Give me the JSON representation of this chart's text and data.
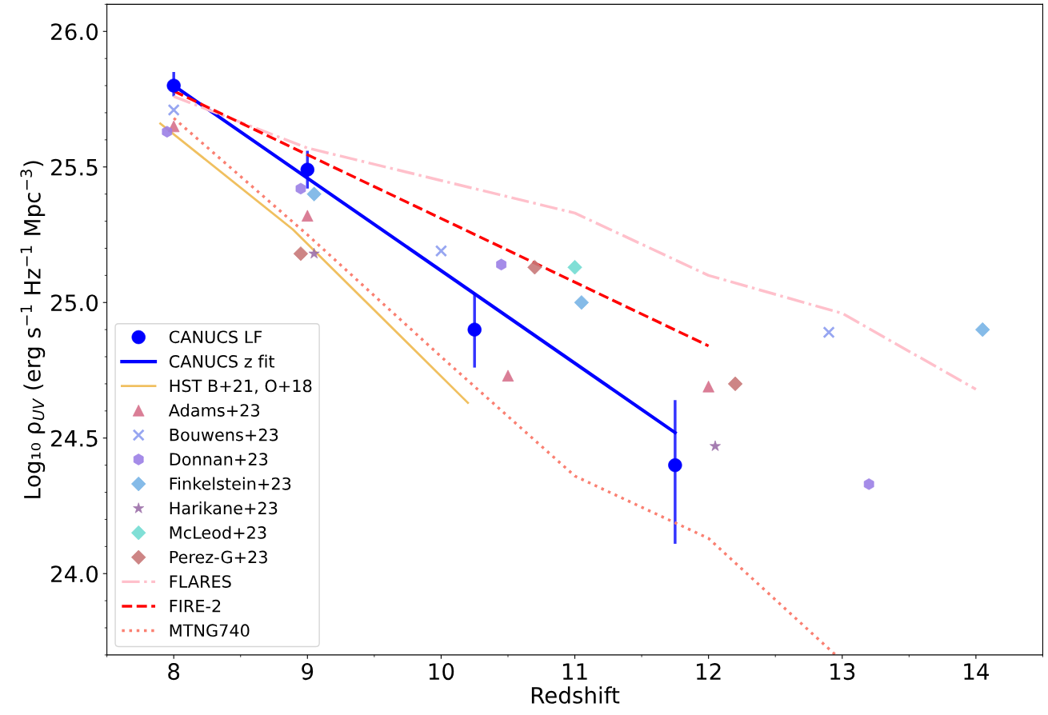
{
  "chart_data": {
    "type": "scatter",
    "xlabel": "Redshift",
    "ylabel": "Log₁₀ ρ$_{UV}$ (erg s$^{−1}$ Hz$^{−1}$ Mpc$^{−3}$)",
    "xlim": [
      7.5,
      14.5
    ],
    "xticks": [
      8,
      9,
      10,
      11,
      12,
      13,
      14
    ],
    "ylim": [
      23.7,
      26.1
    ],
    "yticks": [
      {
        "value": 24.0,
        "label": "24.0"
      },
      {
        "value": 24.5,
        "label": "24.5"
      },
      {
        "value": 25.0,
        "label": "25.0"
      },
      {
        "value": 25.5,
        "label": "25.5"
      },
      {
        "value": 26.0,
        "label": "26.0"
      }
    ],
    "grid": false,
    "legend": "bottom left",
    "series": [
      {
        "name": "CANUCS LF",
        "marker": "circle",
        "color": "#0000ff",
        "x": [
          8,
          9,
          10.25,
          11.75
        ],
        "values": [
          25.8,
          25.49,
          24.9,
          24.4
        ],
        "errors": [
          [
            25.76,
            25.85
          ],
          [
            25.42,
            25.56
          ],
          [
            24.76,
            25.03
          ],
          [
            24.11,
            24.64
          ]
        ]
      },
      {
        "name": "CANUCS z fit",
        "type": "line",
        "line_style": "solid",
        "color": "#0000ff",
        "x": [
          8,
          11.75
        ],
        "values": [
          25.8,
          24.52
        ]
      },
      {
        "name": "HST B+21, O+18",
        "type": "line",
        "line_style": "solid",
        "color": "#f0c060",
        "x": [
          7.9,
          8.89,
          10.2
        ],
        "values": [
          25.66,
          25.27,
          24.63
        ]
      },
      {
        "name": "Adams+23",
        "marker": "triangle",
        "color": "#d6708b",
        "x": [
          8,
          9,
          10.5,
          12
        ],
        "values": [
          25.65,
          25.32,
          24.73,
          24.69
        ]
      },
      {
        "name": "Bouwens+23",
        "marker": "cross",
        "color": "#8c9cf0",
        "x": [
          8,
          10,
          12.9
        ],
        "values": [
          25.71,
          25.19,
          24.89
        ]
      },
      {
        "name": "Donnan+23",
        "color": "#9b7fe6",
        "x": [
          7.95,
          8.95,
          10.45,
          13.2
        ],
        "values": [
          25.63,
          25.42,
          25.14,
          24.33
        ]
      },
      {
        "name": "Finkelstein+23",
        "marker": "diamond",
        "color": "#78b4e6",
        "x": [
          9.05,
          11.05,
          14.05
        ],
        "values": [
          25.4,
          25.0,
          24.9
        ]
      },
      {
        "name": "Harikane+23",
        "marker": "star",
        "color": "#9b6fa8",
        "x": [
          9.05,
          12.05
        ],
        "values": [
          25.18,
          24.47
        ]
      },
      {
        "name": "McLeod+23",
        "marker": "diamond",
        "color": "#72dcd2",
        "x": [
          11
        ],
        "values": [
          25.13
        ]
      },
      {
        "name": "Perez-G+23",
        "marker": "diamond",
        "color": "#c87878",
        "x": [
          8.95,
          10.7,
          12.2
        ],
        "values": [
          25.18,
          25.13,
          24.7
        ]
      },
      {
        "name": "FLARES",
        "type": "line",
        "line_style": "dashdot",
        "color": "#ffc0cb",
        "x": [
          8,
          9,
          10,
          11,
          12,
          13,
          14
        ],
        "values": [
          25.76,
          25.57,
          25.45,
          25.33,
          25.1,
          24.96,
          24.68
        ]
      },
      {
        "name": "FIRE-2",
        "type": "line",
        "line_style": "dashed",
        "color": "#ff0000",
        "x": [
          8,
          12
        ],
        "values": [
          25.78,
          24.84
        ]
      },
      {
        "name": "MTNG740",
        "type": "line",
        "line_style": "dotted",
        "color": "#fa8072",
        "x": [
          8,
          9,
          10,
          11,
          12,
          12.95
        ],
        "values": [
          25.68,
          25.25,
          24.8,
          24.36,
          24.13,
          23.7
        ]
      }
    ]
  }
}
